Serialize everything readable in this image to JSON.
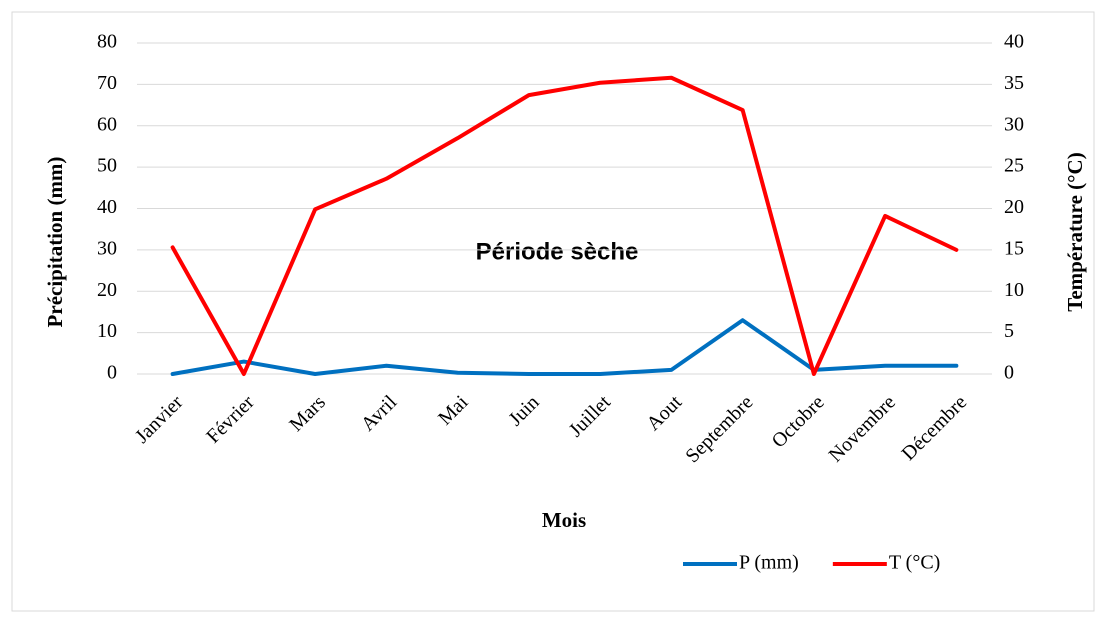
{
  "chart_data": {
    "type": "line",
    "annotation": "Période  sèche",
    "x_label": "Mois",
    "y_label": "Précipitation (mm)",
    "y2_label": "Température (°C)",
    "categories": [
      "Janvier",
      "Février",
      "Mars",
      "Avril",
      "Mai",
      "Juin",
      "Juillet",
      "Aout",
      "Septembre",
      "Octobre",
      "Novembre",
      "Décembre"
    ],
    "series": [
      {
        "name": "P (mm)",
        "color": "#0070c0",
        "values": [
          0,
          3,
          0,
          2,
          0.3,
          0,
          0,
          1,
          13,
          1,
          2,
          2
        ]
      },
      {
        "name": "T (°C)",
        "color": "#ff0000",
        "axis": "y2",
        "values": [
          15.3,
          0,
          19.9,
          23.6,
          28.5,
          33.7,
          35.2,
          35.8,
          31.9,
          0,
          19.1,
          15
        ]
      }
    ],
    "ylim": [
      0,
      80
    ],
    "yticks": [
      0,
      10,
      20,
      30,
      40,
      50,
      60,
      70,
      80
    ],
    "y2lim": [
      0,
      40
    ],
    "y2ticks": [
      0,
      5,
      10,
      15,
      20,
      25,
      30,
      35,
      40
    ],
    "grid": true,
    "legend": "bottom"
  }
}
